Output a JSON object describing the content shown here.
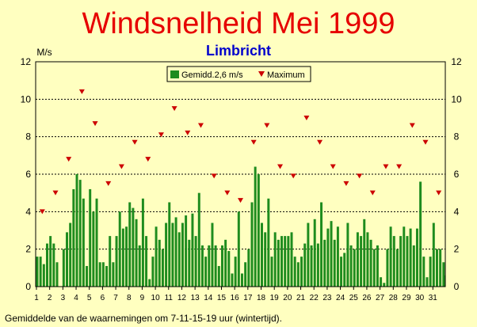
{
  "chart_data": {
    "type": "bar",
    "title": "Windsnelheid Mei 1999",
    "subtitle": "Limbricht",
    "ylabel": "M/s",
    "footnote": "Gemiddelde van de waarnemingen om 7-11-15-19 uur (wintertijd).",
    "ylim": [
      0,
      12
    ],
    "yticks": [
      0,
      2,
      4,
      6,
      8,
      10,
      12
    ],
    "xticks": [
      1,
      2,
      3,
      4,
      5,
      6,
      7,
      8,
      9,
      10,
      11,
      12,
      13,
      14,
      15,
      16,
      17,
      18,
      19,
      20,
      21,
      22,
      23,
      24,
      25,
      26,
      27,
      28,
      29,
      30,
      31
    ],
    "grid": true,
    "legend_position": "top-center",
    "series": [
      {
        "name": "Gemidd.2,6 m/s",
        "kind": "bar",
        "color": "#1e8c1e",
        "values_per_day": [
          [
            1.6,
            1.6,
            1.2,
            2.3
          ],
          [
            2.7,
            2.3,
            1.3,
            0.0
          ],
          [
            2.0,
            2.9,
            3.4,
            5.2
          ],
          [
            6.0,
            5.7,
            4.7,
            1.1
          ],
          [
            5.2,
            4.0,
            4.7,
            1.3
          ],
          [
            1.3,
            1.1,
            2.7,
            1.3
          ],
          [
            2.7,
            4.0,
            3.1,
            3.2
          ],
          [
            4.5,
            4.2,
            3.6,
            2.2
          ],
          [
            4.7,
            2.7,
            0.4,
            1.6
          ],
          [
            3.2,
            2.5,
            2.0,
            3.4
          ],
          [
            4.5,
            3.4,
            3.7,
            2.9
          ],
          [
            3.4,
            3.8,
            2.5,
            3.9
          ],
          [
            2.7,
            5.0,
            2.2,
            1.6
          ],
          [
            2.2,
            3.4,
            2.2,
            1.1
          ],
          [
            2.2,
            2.5,
            1.9,
            0.7
          ],
          [
            1.6,
            4.0,
            0.7,
            1.3
          ],
          [
            2.0,
            4.5,
            6.4,
            6.0
          ],
          [
            3.4,
            2.9,
            4.7,
            1.6
          ],
          [
            2.9,
            2.5,
            2.7,
            2.7
          ],
          [
            2.7,
            2.9,
            1.6,
            1.3
          ],
          [
            1.6,
            2.3,
            3.4,
            2.2
          ],
          [
            3.6,
            2.3,
            4.5,
            2.5
          ],
          [
            3.1,
            3.5,
            2.5,
            3.2
          ],
          [
            1.6,
            1.8,
            3.4,
            2.2
          ],
          [
            2.0,
            2.9,
            2.7,
            3.6
          ],
          [
            2.9,
            2.5,
            2.0,
            2.2
          ],
          [
            0.5,
            0.2,
            2.0,
            3.2
          ],
          [
            2.7,
            2.0,
            2.7,
            3.2
          ],
          [
            2.7,
            3.1,
            2.2,
            3.1
          ],
          [
            5.6,
            1.6,
            0.5,
            1.6
          ],
          [
            3.4,
            2.0,
            2.0,
            1.3
          ]
        ]
      },
      {
        "name": "Maximum",
        "kind": "marker",
        "color": "#cc0000",
        "values": [
          4.0,
          5.0,
          6.8,
          10.4,
          8.7,
          5.5,
          6.4,
          7.7,
          6.8,
          8.1,
          9.5,
          8.2,
          8.6,
          5.9,
          5.0,
          4.6,
          7.7,
          8.6,
          6.4,
          5.9,
          9.0,
          7.7,
          6.4,
          5.5,
          5.9,
          5.0,
          6.4,
          6.4,
          8.6,
          7.7,
          5.0
        ]
      }
    ],
    "last_day_extra_value": 0.6,
    "colors": {
      "background": "#ffffc0",
      "title": "#e60000",
      "subtitle": "#0000cc",
      "bar": "#1e8c1e",
      "marker": "#cc0000"
    }
  }
}
